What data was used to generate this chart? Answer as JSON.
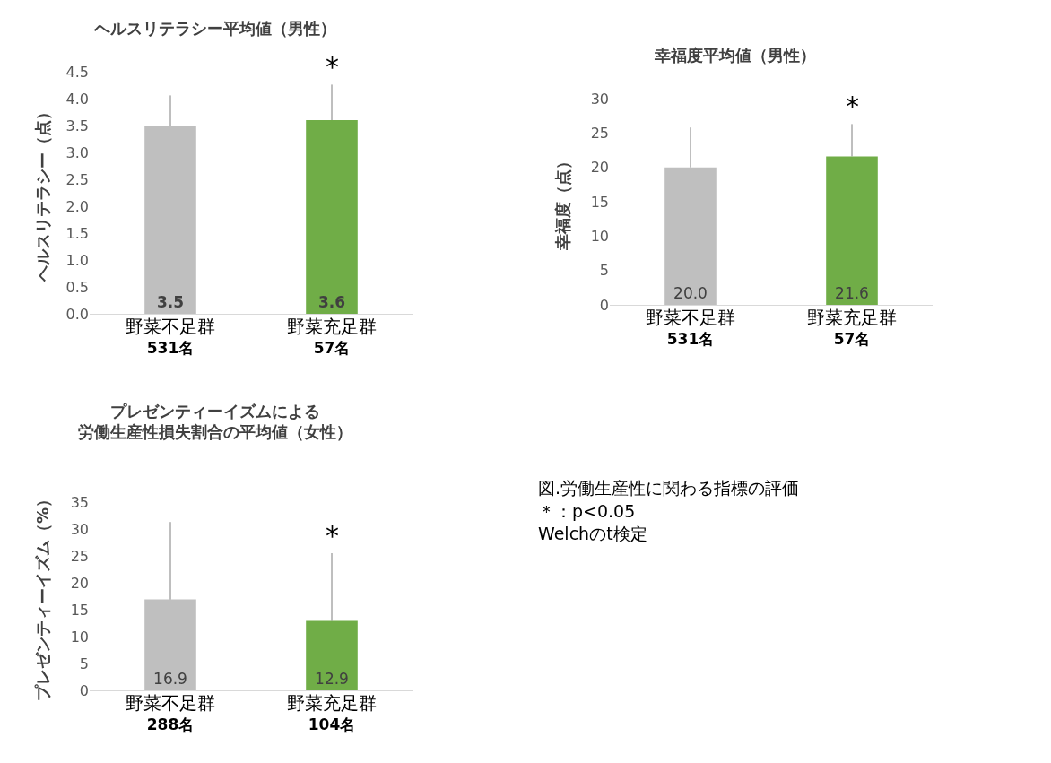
{
  "chart_data": [
    {
      "type": "bar",
      "title": "ヘルスリテラシー平均値（男性）",
      "ylabel": "ヘルスリテラシー（点）",
      "categories": [
        "野菜不足群\n531名",
        "野菜充足群\n57名"
      ],
      "values": [
        3.5,
        3.6
      ],
      "colors": [
        "#bfbfbf",
        "#70ad47"
      ],
      "errors": [
        [
          3.5,
          4.06
        ],
        [
          3.6,
          4.26
        ]
      ],
      "value_labels": [
        "3.5",
        "3.6"
      ],
      "ylim": [
        0,
        4.5
      ],
      "yticks": [
        {
          "value": 0,
          "label": "0.0"
        },
        {
          "value": 0.5,
          "label": "0.5"
        },
        {
          "value": 1,
          "label": "1.0"
        },
        {
          "value": 1.5,
          "label": "1.5"
        },
        {
          "value": 2,
          "label": "2.0"
        },
        {
          "value": 2.5,
          "label": "2.5"
        },
        {
          "value": 3,
          "label": "3.0"
        },
        {
          "value": 3.5,
          "label": "3.5"
        },
        {
          "value": 4,
          "label": "4.0"
        },
        {
          "value": 4.5,
          "label": "4.5"
        }
      ],
      "annotations": [
        {
          "text": "*",
          "x": "野菜充足群\n57名",
          "y": 4.26
        }
      ],
      "grid": false
    },
    {
      "type": "bar",
      "title": "幸福度平均値（男性）",
      "ylabel": "幸福度（点）",
      "categories": [
        "野菜不足群\n531名",
        "野菜充足群\n57名"
      ],
      "values": [
        20.0,
        21.6
      ],
      "colors": [
        "#bfbfbf",
        "#70ad47"
      ],
      "errors": [
        [
          20.0,
          25.8
        ],
        [
          21.6,
          26.3
        ]
      ],
      "value_labels": [
        "20.0",
        "21.6"
      ],
      "ylim": [
        0,
        30
      ],
      "yticks": [
        0,
        5,
        10,
        15,
        20,
        25,
        30
      ],
      "annotations": [
        {
          "text": "*",
          "x": "野菜充足群\n57名",
          "y": 26.3
        }
      ],
      "grid": false
    },
    {
      "type": "bar",
      "title": "プレゼンティーイズムによる",
      "subtitle": "労働生産性損失割合の平均値（女性）",
      "ylabel": "プレゼンティーイズム（%）",
      "categories": [
        "野菜不足群\n288名",
        "野菜充足群\n104名"
      ],
      "values": [
        16.9,
        12.9
      ],
      "colors": [
        "#bfbfbf",
        "#70ad47"
      ],
      "errors": [
        [
          16.9,
          31.3
        ],
        [
          12.9,
          25.5
        ]
      ],
      "value_labels": [
        "16.9",
        "12.9"
      ],
      "ylim": [
        0,
        35
      ],
      "yticks": [
        0,
        5,
        10,
        15,
        20,
        25,
        30,
        35
      ],
      "annotations": [
        {
          "text": "*",
          "x": "野菜充足群\n104名",
          "y": 25.5
        }
      ],
      "grid": false
    },
    {
      "type": "other",
      "annotations": [
        "図.労働生産性に関わる指標の評価",
        "＊：p<0.05",
        "Welchのt検定"
      ]
    }
  ]
}
